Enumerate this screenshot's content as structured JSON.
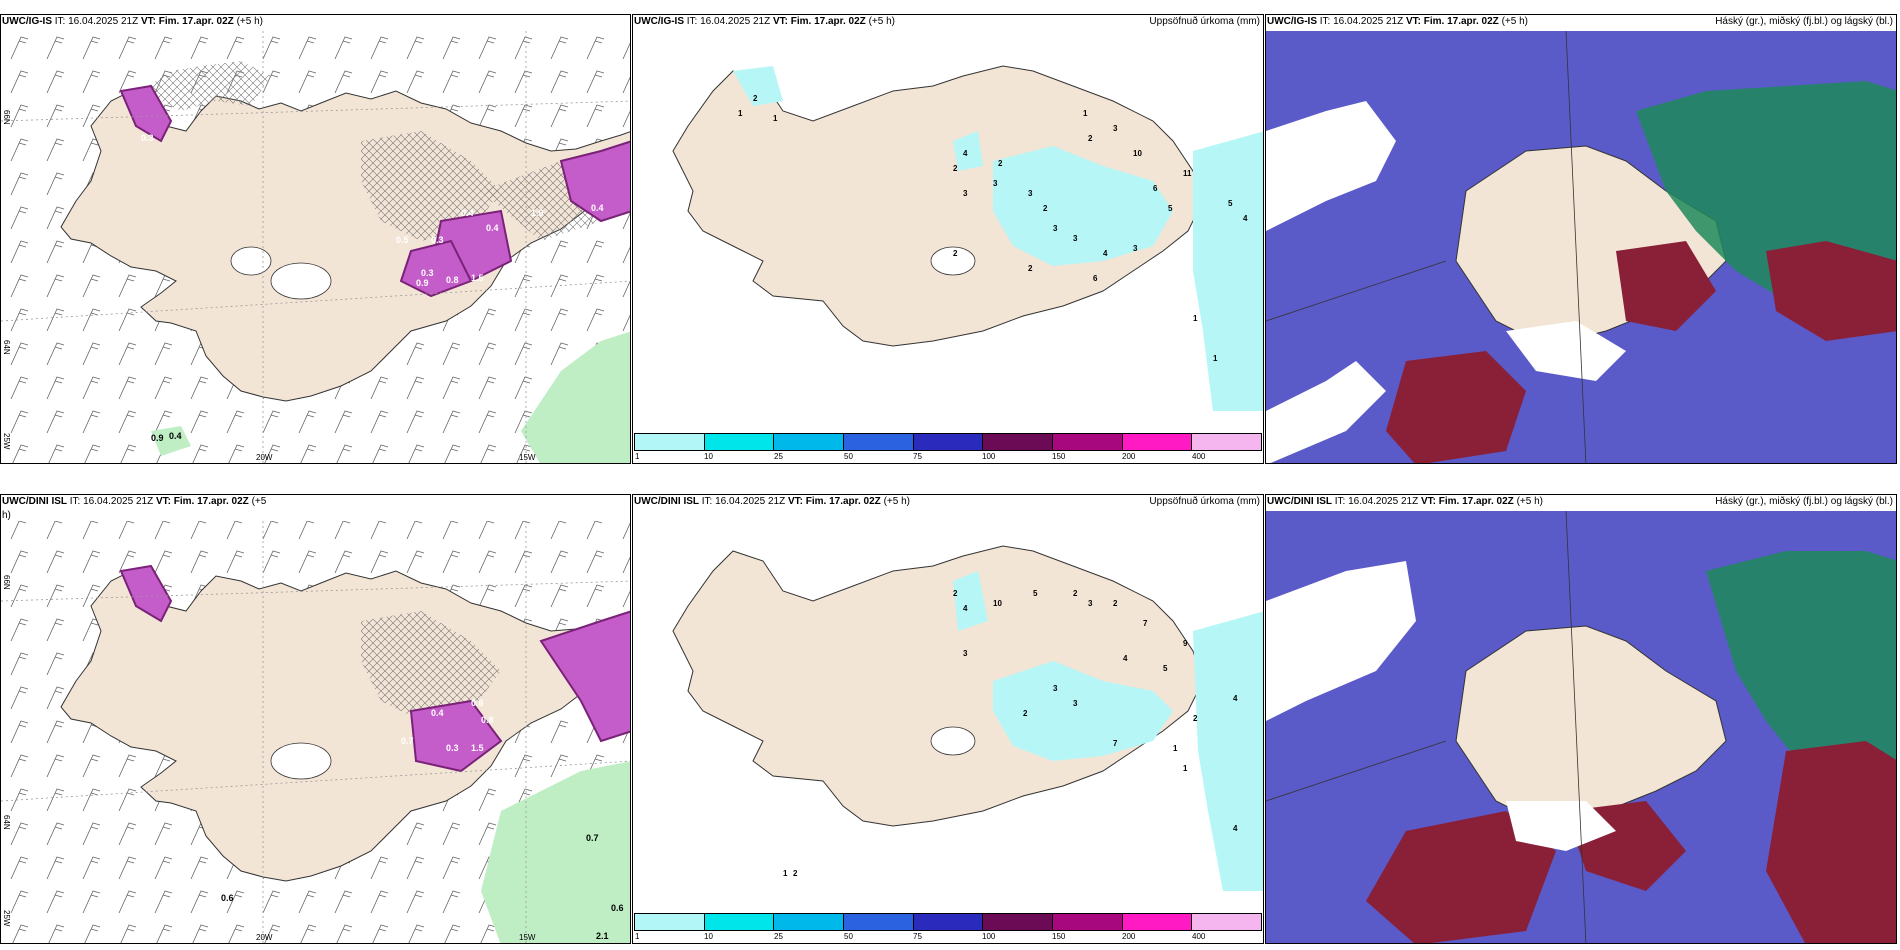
{
  "colors": {
    "land": "#f3e5d6",
    "ocean_wind_panel": "#ffffff",
    "precip_light": "#b6f6f6",
    "magenta_precip": "#c45cc9",
    "magenta_dark": "#7a2277",
    "green_precip": "#bfeec5",
    "cloud_high": "#5a5bc8",
    "cloud_mid": "#1f8a5a",
    "cloud_low": "#8a1f38"
  },
  "colorbar": {
    "colors": [
      "#b3f6f7",
      "#00e5e9",
      "#00b8e9",
      "#2b62e0",
      "#2a2bbd",
      "#6b0a55",
      "#a8087e",
      "#ff1ac3",
      "#f5b6f0"
    ],
    "labels": [
      "1",
      "10",
      "25",
      "50",
      "75",
      "100",
      "150",
      "200",
      "400"
    ]
  },
  "lon_labels": [
    "20W",
    "15W"
  ],
  "lat_labels": [
    "66N",
    "64N",
    "25W"
  ],
  "panels": {
    "top_left": {
      "model": "UWC/IG-IS",
      "it_prefix": "IT:",
      "it_value": "16.04.2025 21Z",
      "vt_prefix": "VT:",
      "vt_value": "Fim. 17.apr. 02Z",
      "lead": "(+5 h)",
      "values": [
        "0.5",
        "0.3",
        "0.4",
        "0.3",
        "0.4",
        "1.5",
        "0.8",
        "0.9",
        "1.0",
        "0.4",
        "0.3",
        "0.9",
        "0.4"
      ]
    },
    "top_mid": {
      "model": "UWC/IG-IS",
      "it_prefix": "IT:",
      "it_value": "16.04.2025 21Z",
      "vt_prefix": "VT:",
      "vt_value": "Fim. 17.apr. 02Z",
      "lead": "(+5 h)",
      "right_title": "Uppsöfnuð úrkoma (mm)",
      "values": [
        "1",
        "2",
        "3",
        "4",
        "3",
        "2",
        "10",
        "2",
        "3",
        "2",
        "3",
        "3",
        "4",
        "3",
        "6",
        "5",
        "11",
        "5",
        "4",
        "2",
        "6",
        "1",
        "2",
        "1",
        "3",
        "1",
        "2",
        "1"
      ]
    },
    "top_right": {
      "model": "UWC/IG-IS",
      "it_prefix": "IT:",
      "it_value": "16.04.2025 21Z",
      "vt_prefix": "VT:",
      "vt_value": "Fim. 17.apr. 02Z",
      "lead": "(+5 h)",
      "right_title": "Háský (gr.), miðský (fj.bl.) og lágský (bl.)"
    },
    "bottom_left": {
      "model": "UWC/DINI ISL",
      "it_prefix": "IT:",
      "it_value": "16.04.2025 21Z",
      "vt_prefix": "VT:",
      "vt_value": "Fim. 17.apr. 02Z",
      "lead": "(+5",
      "lead2": "h)",
      "values": [
        "0.6",
        "0.4",
        "0.8",
        "1.5",
        "0.3",
        "0.7",
        "0.7",
        "0.6",
        "0.6",
        "2.1"
      ]
    },
    "bottom_mid": {
      "model": "UWC/DINI ISL",
      "it_prefix": "IT:",
      "it_value": "16.04.2025 21Z",
      "vt_prefix": "VT:",
      "vt_value": "Fim. 17.apr. 02Z",
      "lead": "(+5 h)",
      "right_title": "Uppsöfnuð úrkoma (mm)",
      "values": [
        "2",
        "4",
        "10",
        "5",
        "3",
        "2",
        "3",
        "2",
        "7",
        "9",
        "5",
        "4",
        "3",
        "2",
        "7",
        "1",
        "2",
        "1",
        "1",
        "2",
        "4",
        "4",
        "3"
      ]
    },
    "bottom_right": {
      "model": "UWC/DINI ISL",
      "it_prefix": "IT:",
      "it_value": "16.04.2025 21Z",
      "vt_prefix": "VT:",
      "vt_value": "Fim. 17.apr. 02Z",
      "lead": "(+5 h)",
      "right_title": "Háský (gr.), miðský (fj.bl.) og lágský (bl.)"
    }
  }
}
